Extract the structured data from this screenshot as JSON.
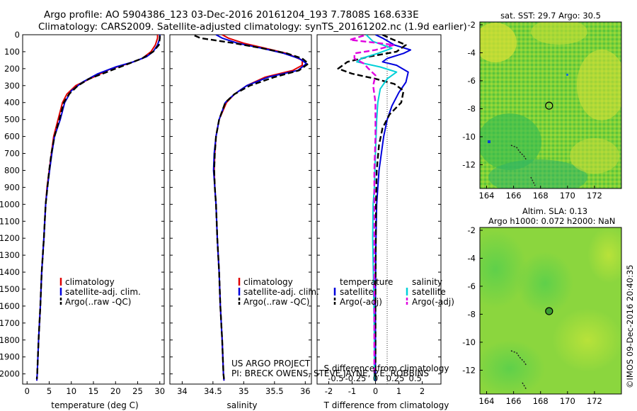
{
  "header": {
    "line1": "Argo profile: AO 5904386_123 03-Dec-2016 20161204_193 7.7808S 168.633E",
    "line2": "Climatology: CARS2009. Satellite-adjusted climatology: synTS_20161202.nc (1.9d earlier)"
  },
  "depth_ticks": [
    "0",
    "100",
    "200",
    "300",
    "400",
    "500",
    "600",
    "700",
    "800",
    "900",
    "1000",
    "1100",
    "1200",
    "1300",
    "1400",
    "1500",
    "1600",
    "1700",
    "1800",
    "1900",
    "2000"
  ],
  "credit": {
    "line1": "US ARGO PROJECT",
    "line2": "PI: BRECK OWENS, STEVE JAYNE, P.E. ROBBINS"
  },
  "watermark": "©IMOS 09-Dec-2016 20:40:35",
  "colors": {
    "climatology": "#e00000",
    "satellite": "#0000dd",
    "argo": "#000000",
    "sal_sat": "#00d0d8",
    "sal_argo": "#e000e0"
  },
  "chart_data": [
    {
      "type": "line",
      "id": "temperature",
      "xlabel": "temperature (deg C)",
      "ylabel": "depth",
      "xlim": [
        -1,
        31
      ],
      "ylim": [
        2060,
        0
      ],
      "x_ticks": [
        "0",
        "5",
        "10",
        "15",
        "20",
        "25",
        "30"
      ],
      "legend": [
        "climatology",
        "satellite-adj. clim.",
        "Argo(..raw -QC)"
      ],
      "series": [
        {
          "name": "climatology",
          "color": "#e00000",
          "dash": "",
          "points": [
            [
              29.5,
              0
            ],
            [
              29.5,
              20
            ],
            [
              29,
              60
            ],
            [
              28,
              100
            ],
            [
              26,
              140
            ],
            [
              23,
              170
            ],
            [
              19,
              200
            ],
            [
              15,
              250
            ],
            [
              11,
              300
            ],
            [
              9,
              350
            ],
            [
              8,
              400
            ],
            [
              7,
              500
            ],
            [
              6,
              600
            ],
            [
              5.5,
              700
            ],
            [
              5,
              800
            ],
            [
              4.5,
              900
            ],
            [
              4.2,
              1000
            ],
            [
              3.8,
              1200
            ],
            [
              3.3,
              1400
            ],
            [
              3,
              1600
            ],
            [
              2.6,
              1800
            ],
            [
              2.3,
              2000
            ],
            [
              2.2,
              2040
            ]
          ]
        },
        {
          "name": "satellite-adj. clim.",
          "color": "#0000dd",
          "dash": "",
          "points": [
            [
              30,
              0
            ],
            [
              30,
              20
            ],
            [
              29.5,
              60
            ],
            [
              28.5,
              100
            ],
            [
              27,
              130
            ],
            [
              24,
              160
            ],
            [
              20,
              190
            ],
            [
              16,
              230
            ],
            [
              12.5,
              280
            ],
            [
              10,
              330
            ],
            [
              8.5,
              400
            ],
            [
              7.5,
              500
            ],
            [
              6.2,
              600
            ],
            [
              5.6,
              700
            ],
            [
              5.1,
              800
            ],
            [
              4.6,
              900
            ],
            [
              4.2,
              1000
            ],
            [
              3.8,
              1200
            ],
            [
              3.3,
              1400
            ],
            [
              3,
              1600
            ],
            [
              2.6,
              1800
            ],
            [
              2.3,
              2000
            ],
            [
              2.2,
              2040
            ]
          ]
        },
        {
          "name": "Argo(..raw -QC)",
          "color": "#000000",
          "dash": "8,4",
          "points": [
            [
              30,
              5
            ],
            [
              30,
              20
            ],
            [
              29.8,
              60
            ],
            [
              28.5,
              100
            ],
            [
              26,
              140
            ],
            [
              22,
              180
            ],
            [
              18,
              220
            ],
            [
              14,
              260
            ],
            [
              11.5,
              300
            ],
            [
              9.5,
              350
            ],
            [
              8.3,
              400
            ],
            [
              7.3,
              500
            ],
            [
              6.2,
              600
            ],
            [
              5.5,
              700
            ],
            [
              5,
              800
            ],
            [
              4.6,
              900
            ],
            [
              4.2,
              1000
            ],
            [
              3.8,
              1200
            ],
            [
              3.3,
              1400
            ],
            [
              3,
              1600
            ],
            [
              2.6,
              1800
            ],
            [
              2.3,
              2000
            ],
            [
              2.2,
              2030
            ]
          ]
        }
      ]
    },
    {
      "type": "line",
      "id": "salinity",
      "xlabel": "salinity",
      "ylabel": "depth",
      "xlim": [
        33.8,
        36.1
      ],
      "ylim": [
        2060,
        0
      ],
      "x_ticks": [
        "34",
        "34.5",
        "35",
        "35.5",
        "36"
      ],
      "legend": [
        "climatology",
        "satellite-adj. clim.",
        "Argo(..raw -QC)"
      ],
      "series": [
        {
          "name": "climatology",
          "color": "#e00000",
          "dash": "",
          "points": [
            [
              34.65,
              0
            ],
            [
              34.75,
              20
            ],
            [
              35,
              50
            ],
            [
              35.35,
              80
            ],
            [
              35.7,
              110
            ],
            [
              35.95,
              150
            ],
            [
              35.95,
              180
            ],
            [
              35.8,
              210
            ],
            [
              35.35,
              250
            ],
            [
              35.05,
              300
            ],
            [
              34.85,
              350
            ],
            [
              34.72,
              400
            ],
            [
              34.6,
              500
            ],
            [
              34.55,
              600
            ],
            [
              34.53,
              700
            ],
            [
              34.52,
              800
            ],
            [
              34.53,
              900
            ],
            [
              34.55,
              1000
            ],
            [
              34.57,
              1200
            ],
            [
              34.6,
              1400
            ],
            [
              34.62,
              1600
            ],
            [
              34.65,
              1800
            ],
            [
              34.67,
              2000
            ],
            [
              34.68,
              2040
            ]
          ]
        },
        {
          "name": "satellite-adj. clim.",
          "color": "#0000dd",
          "dash": "",
          "points": [
            [
              34.55,
              0
            ],
            [
              34.65,
              20
            ],
            [
              34.9,
              50
            ],
            [
              35.3,
              80
            ],
            [
              35.65,
              110
            ],
            [
              35.9,
              140
            ],
            [
              36.02,
              170
            ],
            [
              35.88,
              210
            ],
            [
              35.4,
              250
            ],
            [
              35.05,
              300
            ],
            [
              34.85,
              350
            ],
            [
              34.7,
              400
            ],
            [
              34.6,
              500
            ],
            [
              34.55,
              600
            ],
            [
              34.52,
              700
            ],
            [
              34.51,
              800
            ],
            [
              34.53,
              900
            ],
            [
              34.55,
              1000
            ],
            [
              34.57,
              1200
            ],
            [
              34.6,
              1400
            ],
            [
              34.62,
              1600
            ],
            [
              34.65,
              1800
            ],
            [
              34.67,
              2000
            ],
            [
              34.68,
              2040
            ]
          ]
        },
        {
          "name": "Argo(..raw -QC)",
          "color": "#000000",
          "dash": "8,4",
          "points": [
            [
              34.2,
              5
            ],
            [
              34.3,
              20
            ],
            [
              34.85,
              50
            ],
            [
              35.3,
              80
            ],
            [
              35.7,
              110
            ],
            [
              35.95,
              140
            ],
            [
              36.05,
              170
            ],
            [
              35.9,
              210
            ],
            [
              35.5,
              250
            ],
            [
              35.1,
              300
            ],
            [
              34.85,
              350
            ],
            [
              34.7,
              400
            ],
            [
              34.6,
              500
            ],
            [
              34.55,
              600
            ],
            [
              34.53,
              700
            ],
            [
              34.52,
              800
            ],
            [
              34.53,
              900
            ],
            [
              34.55,
              1000
            ],
            [
              34.57,
              1200
            ],
            [
              34.6,
              1400
            ],
            [
              34.62,
              1600
            ],
            [
              34.65,
              1800
            ],
            [
              34.67,
              2000
            ],
            [
              34.68,
              2030
            ]
          ]
        }
      ]
    },
    {
      "type": "line",
      "id": "difference",
      "xlabel": "T difference from climatology",
      "xlabel_top": "S difference from climatology",
      "ylabel": "depth",
      "xlim": [
        -2.5,
        2.8
      ],
      "ylim": [
        2060,
        0
      ],
      "x_ticks": [
        "-2",
        "-1",
        "0",
        "1",
        "2"
      ],
      "x_ticks_top": [
        "-0.5",
        "-0.25",
        "0",
        "0.25",
        "0.5"
      ],
      "legend_titles": [
        "temperature",
        "salinity"
      ],
      "legend": [
        "satellite",
        "Argo(-adj)",
        "satellite",
        "Argo(-adj)"
      ],
      "series": [
        {
          "name": "temperature satellite",
          "color": "#0000dd",
          "dash": "",
          "points": [
            [
              0,
              0
            ],
            [
              0.3,
              20
            ],
            [
              0.8,
              60
            ],
            [
              1.5,
              90
            ],
            [
              1.2,
              110
            ],
            [
              0.5,
              140
            ],
            [
              0.3,
              160
            ],
            [
              0.9,
              180
            ],
            [
              1.4,
              220
            ],
            [
              1.3,
              280
            ],
            [
              1,
              340
            ],
            [
              0.7,
              420
            ],
            [
              0.5,
              500
            ],
            [
              0.35,
              600
            ],
            [
              0.25,
              700
            ],
            [
              0.15,
              800
            ],
            [
              0.1,
              900
            ],
            [
              0.05,
              1000
            ],
            [
              0.02,
              1200
            ],
            [
              0,
              1500
            ],
            [
              0,
              2040
            ]
          ]
        },
        {
          "name": "temperature Argo(-adj)",
          "color": "#000000",
          "dash": "8,4",
          "points": [
            [
              0.3,
              0
            ],
            [
              0.6,
              20
            ],
            [
              1.3,
              60
            ],
            [
              0.9,
              100
            ],
            [
              -0.3,
              130
            ],
            [
              -1.2,
              160
            ],
            [
              -1.6,
              200
            ],
            [
              -1,
              230
            ],
            [
              0,
              260
            ],
            [
              0.8,
              290
            ],
            [
              1.2,
              330
            ],
            [
              1.1,
              400
            ],
            [
              0.6,
              470
            ],
            [
              0.3,
              550
            ],
            [
              0.15,
              650
            ],
            [
              0.05,
              800
            ],
            [
              0.02,
              1000
            ],
            [
              0,
              1500
            ],
            [
              0,
              2040
            ]
          ]
        },
        {
          "name": "salinity satellite",
          "color": "#00d0d8",
          "dash": "",
          "points": [
            [
              -0.4,
              0
            ],
            [
              -0.1,
              40
            ],
            [
              0.7,
              80
            ],
            [
              0.1,
              110
            ],
            [
              -0.6,
              140
            ],
            [
              -0.8,
              160
            ],
            [
              0.2,
              190
            ],
            [
              0.9,
              220
            ],
            [
              0.5,
              260
            ],
            [
              0.2,
              320
            ],
            [
              0.1,
              400
            ],
            [
              0.05,
              500
            ],
            [
              0,
              700
            ],
            [
              -0.05,
              900
            ],
            [
              -0.1,
              1000
            ],
            [
              -0.12,
              1200
            ],
            [
              -0.08,
              1500
            ],
            [
              -0.05,
              1800
            ],
            [
              -0.05,
              2040
            ]
          ]
        },
        {
          "name": "salinity Argo(-adj)",
          "color": "#e000e0",
          "dash": "8,4",
          "points": [
            [
              -0.5,
              5
            ],
            [
              -1.1,
              30
            ],
            [
              0.8,
              60
            ],
            [
              0,
              90
            ],
            [
              -0.9,
              110
            ],
            [
              -0.9,
              140
            ],
            [
              -0.5,
              170
            ],
            [
              -0.3,
              200
            ],
            [
              0,
              240
            ],
            [
              -0.1,
              300
            ],
            [
              0,
              400
            ],
            [
              0,
              600
            ],
            [
              -0.05,
              800
            ],
            [
              -0.05,
              1100
            ],
            [
              -0.05,
              1500
            ],
            [
              -0.05,
              1800
            ],
            [
              -0.05,
              2000
            ]
          ]
        }
      ]
    },
    {
      "type": "heatmap",
      "id": "sst-map",
      "title": "sat. SST: 29.7  Argo: 30.5",
      "xlim": [
        163.5,
        174
      ],
      "ylim": [
        -13.7,
        -1.8
      ],
      "x_ticks": [
        "164",
        "166",
        "168",
        "170",
        "172"
      ],
      "y_ticks": [
        "-2",
        "-4",
        "-6",
        "-8",
        "-10",
        "-12"
      ],
      "argo_position": [
        168.633,
        -7.7808
      ]
    },
    {
      "type": "heatmap",
      "id": "sla-map",
      "title_line1": "Altim. SLA: 0.13",
      "title_line2": "Argo h1000: 0.072  h2000: NaN",
      "xlim": [
        163.5,
        174
      ],
      "ylim": [
        -13.7,
        -1.8
      ],
      "x_ticks": [
        "164",
        "166",
        "168",
        "170",
        "172"
      ],
      "y_ticks": [
        "-2",
        "-4",
        "-6",
        "-8",
        "-10",
        "-12"
      ],
      "argo_position": [
        168.633,
        -7.7808
      ]
    }
  ]
}
